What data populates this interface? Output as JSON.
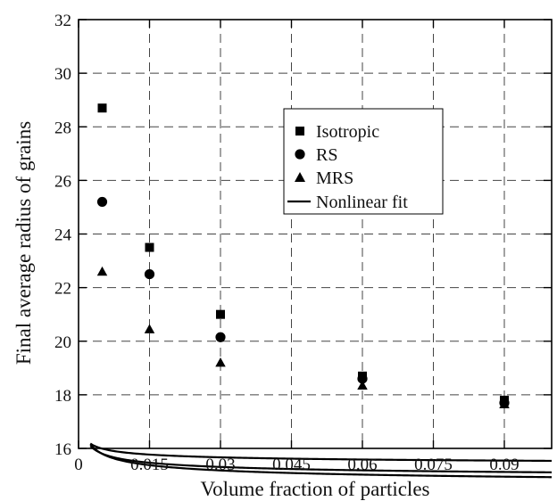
{
  "chart_data": {
    "type": "scatter",
    "title": "",
    "xlabel": "Volume fraction of particles",
    "ylabel": "Final average radius of grains",
    "xlim": [
      0,
      0.1
    ],
    "ylim": [
      16,
      32
    ],
    "xticks": [
      "0",
      "0.015",
      "0.03",
      "0.045",
      "0.06",
      "0.075",
      "0.09"
    ],
    "yticks": [
      "16",
      "18",
      "20",
      "22",
      "24",
      "26",
      "28",
      "30",
      "32"
    ],
    "grid": true,
    "grid_style": "dashed",
    "legend_position": "upper-right",
    "series": [
      {
        "name": "Isotropic",
        "marker": "square",
        "x": [
          0.005,
          0.015,
          0.03,
          0.06,
          0.09
        ],
        "y": [
          28.7,
          23.5,
          21.0,
          18.7,
          17.8
        ]
      },
      {
        "name": "RS",
        "marker": "circle",
        "x": [
          0.005,
          0.015,
          0.03,
          0.06,
          0.09
        ],
        "y": [
          25.2,
          22.5,
          20.15,
          18.6,
          17.7
        ]
      },
      {
        "name": "MRS",
        "marker": "triangle",
        "x": [
          0.005,
          0.015,
          0.03,
          0.06,
          0.09
        ],
        "y": [
          22.6,
          20.45,
          19.2,
          18.35,
          17.65
        ]
      }
    ],
    "fit_curves": {
      "legend_label": "Nonlinear fit",
      "curves": [
        {
          "for": "Isotropic",
          "a": 14.42,
          "b": 0.2355,
          "c": 0.3333
        },
        {
          "for": "RS",
          "a": 14.7,
          "b": 0.1889,
          "c": 0.3333
        },
        {
          "for": "MRS",
          "a": 15.27,
          "b": 0.1234,
          "c": 0.3333
        }
      ],
      "x_start": 0.0025
    }
  }
}
